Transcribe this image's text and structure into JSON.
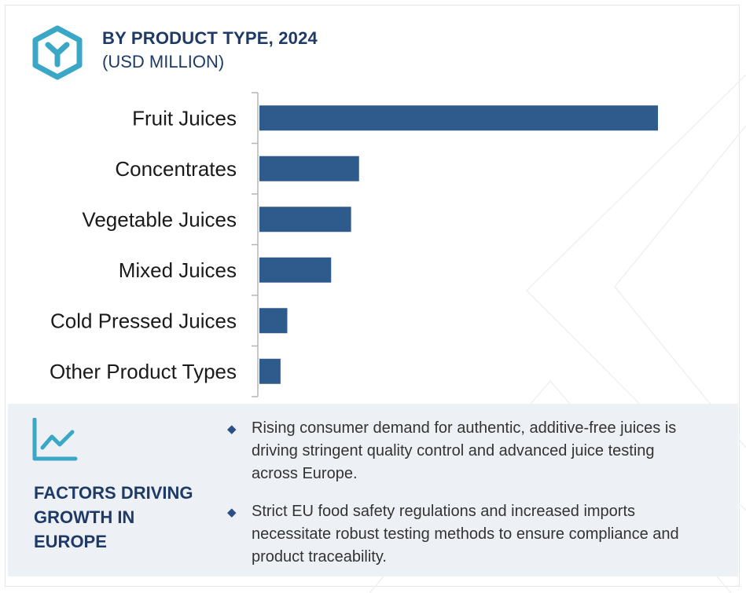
{
  "header": {
    "title": "BY PRODUCT TYPE, 2024",
    "subtitle": "(USD MILLION)",
    "logo_icon": "hexagon-y-logo-icon"
  },
  "chart_data": {
    "type": "bar",
    "orientation": "horizontal",
    "title": "BY PRODUCT TYPE, 2024",
    "subtitle": "(USD MILLION)",
    "categories": [
      "Fruit Juices",
      "Concentrates",
      "Vegetable Juices",
      "Mixed Juices",
      "Cold Pressed Juices",
      "Other Product Types"
    ],
    "values": [
      100,
      25,
      23,
      18,
      7,
      5.3
    ],
    "value_note_max": 100,
    "xlim": [
      0,
      100
    ],
    "grid": false,
    "legend": "none",
    "bar_color": "#2f5a8c"
  },
  "factors": {
    "icon": "trend-chart-icon",
    "title_lines": [
      "FACTORS DRIVING",
      "GROWTH IN",
      "EUROPE"
    ],
    "bullet_icon": "diamond-bullet-icon",
    "items": [
      {
        "lines": [
          "Rising consumer demand for authentic, additive-free juices is",
          "driving stringent quality control and advanced juice testing",
          "across Europe."
        ]
      },
      {
        "lines": [
          "Strict EU food safety regulations and increased imports",
          "necessitate robust testing methods to ensure compliance and",
          "product traceability."
        ]
      }
    ]
  },
  "colors": {
    "accent": "#3aa7c6",
    "navy": "#1e3a66",
    "bar": "#2f5a8c",
    "panel": "#edf0f5"
  }
}
